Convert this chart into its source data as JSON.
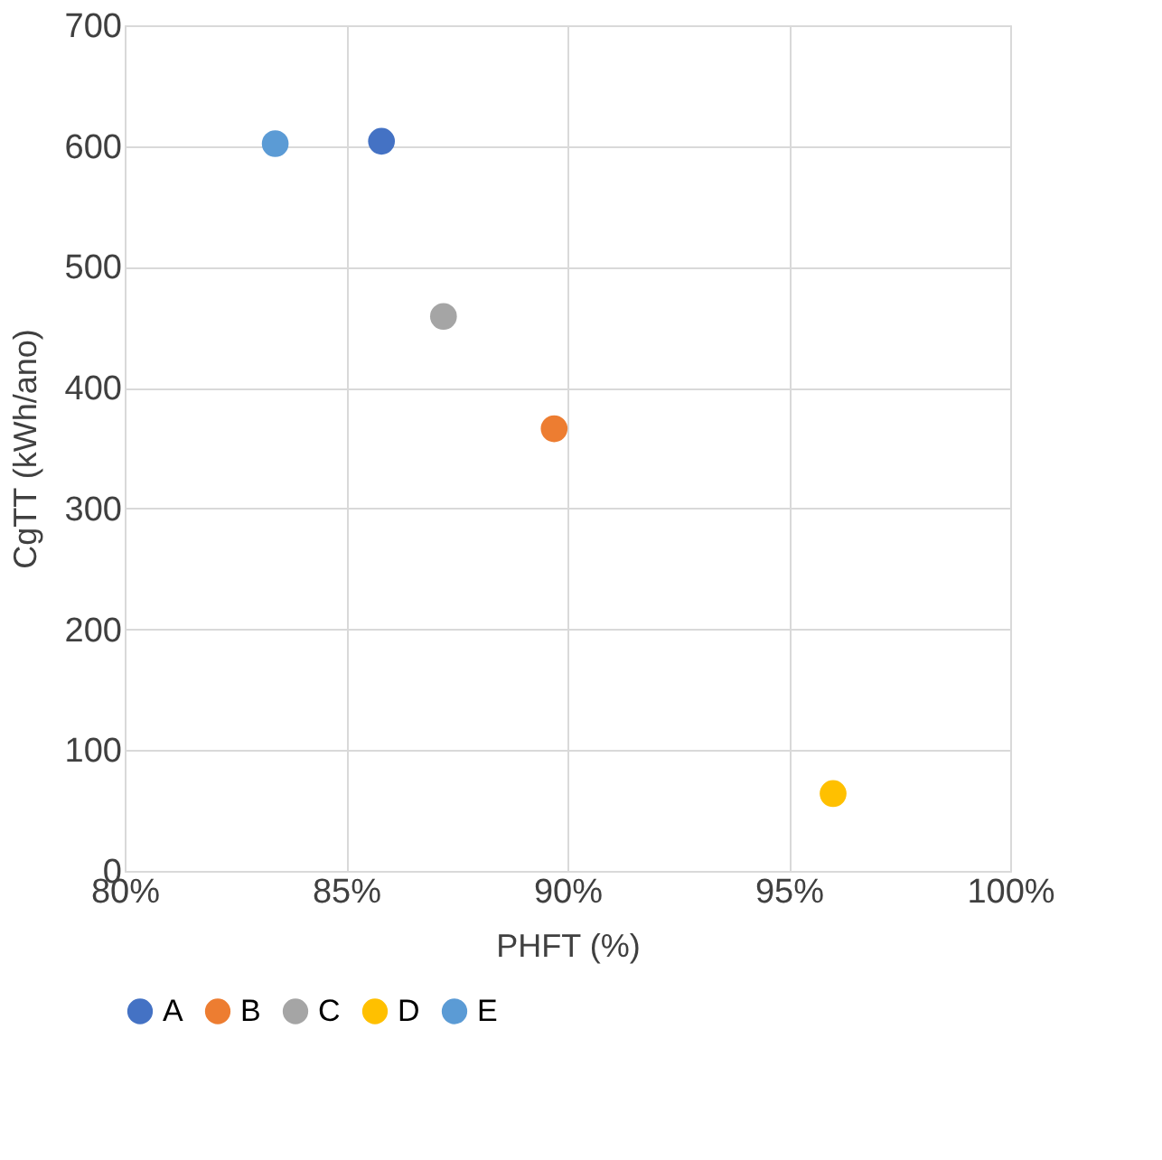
{
  "chart_data": {
    "type": "scatter",
    "xlabel": "PHFT (%)",
    "ylabel": "CgTT (kWh/ano)",
    "xlim": [
      80,
      100
    ],
    "xticks": [
      {
        "value": 80,
        "label": "80%"
      },
      {
        "value": 85,
        "label": "85%"
      },
      {
        "value": 90,
        "label": "90%"
      },
      {
        "value": 95,
        "label": "95%"
      },
      {
        "value": 100,
        "label": "100%"
      }
    ],
    "ylim": [
      0,
      700
    ],
    "yticks": [
      0,
      100,
      200,
      300,
      400,
      500,
      600,
      700
    ],
    "grid": true,
    "legend": "bottom",
    "marker": "circle",
    "series": [
      {
        "name": "A",
        "color": "#4472c4",
        "x": [
          85.8
        ],
        "values": [
          604
        ]
      },
      {
        "name": "B",
        "color": "#ed7d31",
        "x": [
          89.7
        ],
        "values": [
          366
        ]
      },
      {
        "name": "C",
        "color": "#a5a5a5",
        "x": [
          87.2
        ],
        "values": [
          459
        ]
      },
      {
        "name": "D",
        "color": "#ffc000",
        "x": [
          96.0
        ],
        "values": [
          64
        ]
      },
      {
        "name": "E",
        "color": "#5b9bd5",
        "x": [
          83.4
        ],
        "values": [
          602
        ]
      }
    ]
  }
}
